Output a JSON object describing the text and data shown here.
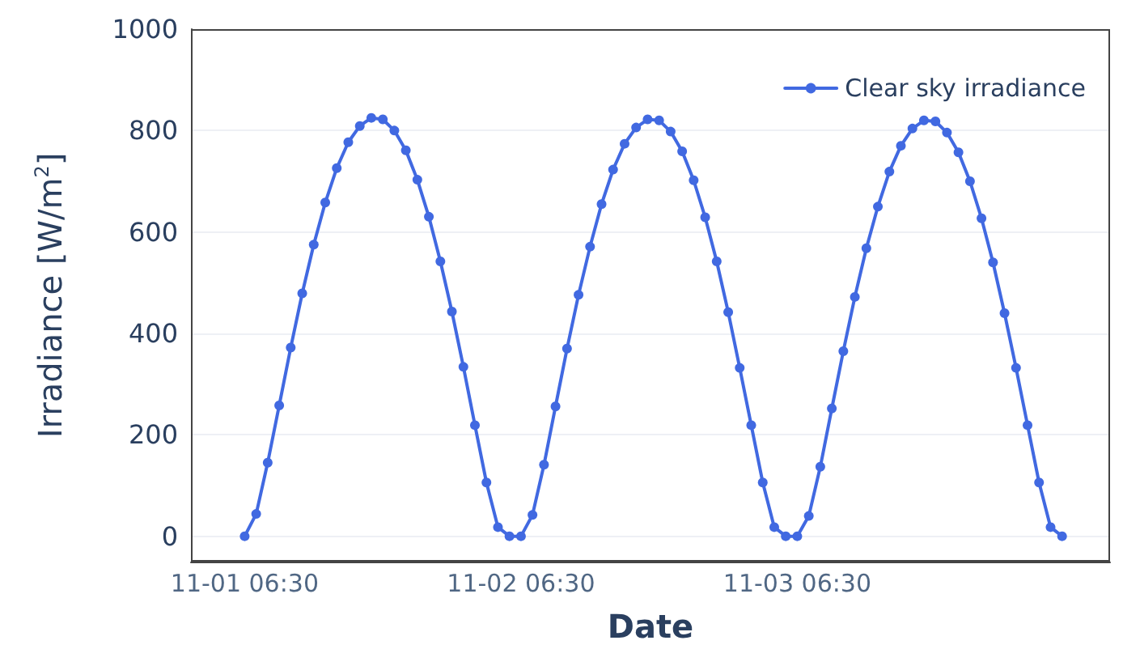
{
  "chart_data": {
    "type": "line",
    "xlabel": "Date",
    "ylabel": "Irradiance [W/m$^{2}$]",
    "x": [
      "--11-01T06:30",
      "--11-01T07:30",
      "--11-01T08:30",
      "--11-01T09:30",
      "--11-01T10:30",
      "--11-01T11:30",
      "--11-01T12:30",
      "--11-01T13:30",
      "--11-01T14:30",
      "--11-01T15:30",
      "--11-01T16:30",
      "--11-01T17:30",
      "--11-01T18:30",
      "--11-01T19:30",
      "--11-01T20:30",
      "--11-01T21:30",
      "--11-01T22:30",
      "--11-01T23:30",
      "--11-02T00:30",
      "--11-02T01:30",
      "--11-02T02:30",
      "--11-02T03:30",
      "--11-02T04:30",
      "--11-02T05:30",
      "--11-02T06:30",
      "--11-02T07:30",
      "--11-02T08:30",
      "--11-02T09:30",
      "--11-02T10:30",
      "--11-02T11:30",
      "--11-02T12:30",
      "--11-02T13:30",
      "--11-02T14:30",
      "--11-02T15:30",
      "--11-02T16:30",
      "--11-02T17:30",
      "--11-02T18:30",
      "--11-02T19:30",
      "--11-02T20:30",
      "--11-02T21:30",
      "--11-02T22:30",
      "--11-02T23:30",
      "--11-03T00:30",
      "--11-03T01:30",
      "--11-03T02:30",
      "--11-03T03:30",
      "--11-03T04:30",
      "--11-03T05:30",
      "--11-03T06:30",
      "--11-03T07:30",
      "--11-03T08:30",
      "--11-03T09:30",
      "--11-03T10:30",
      "--11-03T11:30",
      "--11-03T12:30",
      "--11-03T13:30",
      "--11-03T14:30",
      "--11-03T15:30",
      "--11-03T16:30",
      "--11-03T17:30",
      "--11-03T18:30",
      "--11-03T19:30",
      "--11-03T20:30",
      "--11-03T21:30",
      "--11-03T22:30",
      "--11-03T23:30",
      "--11-04T00:30",
      "--11-04T01:30",
      "--11-04T02:30",
      "--11-04T03:30",
      "--11-04T04:30",
      "--11-04T05:30"
    ],
    "series": [
      {
        "name": "Clear sky irradiance",
        "color": "#4169e1",
        "values": [
          0,
          44,
          145,
          258,
          372,
          479,
          575,
          658,
          726,
          777,
          809,
          825,
          822,
          800,
          761,
          703,
          630,
          542,
          443,
          334,
          219,
          106,
          18,
          0,
          0,
          42,
          141,
          256,
          370,
          476,
          571,
          655,
          723,
          774,
          806,
          822,
          820,
          798,
          759,
          702,
          629,
          542,
          442,
          332,
          219,
          106,
          18,
          0,
          0,
          40,
          137,
          252,
          365,
          472,
          568,
          650,
          719,
          770,
          804,
          820,
          818,
          796,
          757,
          700,
          627,
          540,
          440,
          332,
          219,
          106,
          18,
          0
        ]
      }
    ],
    "xlim": [
      "--11-01T01:50",
      "--11-04T09:40"
    ],
    "xticks": [
      {
        "value": "--11-01T06:30",
        "label": "11-01 06:30"
      },
      {
        "value": "--11-02T06:30",
        "label": "11-02 06:30"
      },
      {
        "value": "--11-03T06:30",
        "label": "11-03 06:30"
      }
    ],
    "ylim": [
      -50,
      1000
    ],
    "yticks": [
      0,
      200,
      400,
      600,
      800,
      1000
    ],
    "grid": "y",
    "legend": "top right",
    "marker": "circle",
    "line_style": "solid"
  }
}
